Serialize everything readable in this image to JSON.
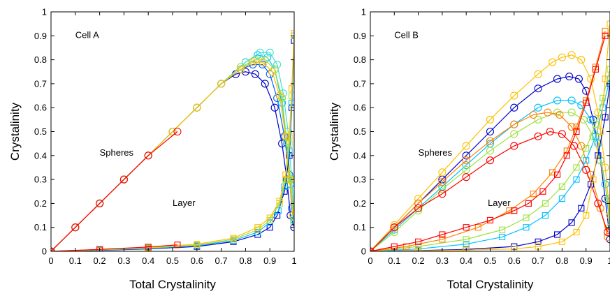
{
  "chart_data": [
    {
      "type": "line",
      "xlabel": "Total Crystalinity",
      "ylabel": "Crystalinity",
      "xlim": [
        0,
        1
      ],
      "ylim": [
        0,
        1
      ],
      "xticks": [
        "0",
        "0.1",
        "0.2",
        "0.3",
        "0.4",
        "0.5",
        "0.6",
        "0.7",
        "0.8",
        "0.9",
        "1"
      ],
      "yticks": [
        "0",
        "0.1",
        "0.2",
        "0.3",
        "0.4",
        "0.5",
        "0.6",
        "0.7",
        "0.8",
        "0.9",
        "1"
      ],
      "annotations": [
        {
          "text": "Cell A",
          "x": 0.1,
          "y": 0.89
        },
        {
          "text": "Spheres",
          "x": 0.2,
          "y": 0.4
        },
        {
          "text": "Layer",
          "x": 0.5,
          "y": 0.19
        }
      ],
      "series": [
        {
          "group": "spheres",
          "marker": "circle",
          "color": "#0000c8",
          "x": [
            0,
            0.1,
            0.2,
            0.3,
            0.4,
            0.5,
            0.6,
            0.7,
            0.76,
            0.8,
            0.84,
            0.88,
            0.92,
            0.95,
            0.97,
            0.985,
            1.0
          ],
          "y": [
            0,
            0.1,
            0.2,
            0.3,
            0.4,
            0.5,
            0.6,
            0.7,
            0.74,
            0.75,
            0.74,
            0.7,
            0.6,
            0.45,
            0.3,
            0.15,
            0.1
          ]
        },
        {
          "group": "spheres",
          "marker": "circle",
          "color": "#0060ff",
          "x": [
            0,
            0.1,
            0.2,
            0.3,
            0.4,
            0.5,
            0.6,
            0.7,
            0.78,
            0.83,
            0.87,
            0.9,
            0.93,
            0.96,
            0.98,
            0.99,
            1.0
          ],
          "y": [
            0,
            0.1,
            0.2,
            0.3,
            0.4,
            0.5,
            0.6,
            0.7,
            0.76,
            0.78,
            0.78,
            0.74,
            0.64,
            0.48,
            0.32,
            0.18,
            0.12
          ]
        },
        {
          "group": "spheres",
          "marker": "circle",
          "color": "#00c0ff",
          "x": [
            0,
            0.1,
            0.2,
            0.3,
            0.4,
            0.5,
            0.6,
            0.7,
            0.8,
            0.85,
            0.89,
            0.92,
            0.95,
            0.97,
            0.985,
            1.0
          ],
          "y": [
            0,
            0.1,
            0.2,
            0.3,
            0.4,
            0.5,
            0.6,
            0.7,
            0.79,
            0.82,
            0.81,
            0.76,
            0.62,
            0.45,
            0.28,
            0.13
          ]
        },
        {
          "group": "spheres",
          "marker": "circle",
          "color": "#40e0d0",
          "x": [
            0,
            0.1,
            0.2,
            0.3,
            0.4,
            0.5,
            0.6,
            0.7,
            0.8,
            0.86,
            0.9,
            0.93,
            0.955,
            0.975,
            0.99,
            1.0
          ],
          "y": [
            0,
            0.1,
            0.2,
            0.3,
            0.4,
            0.5,
            0.6,
            0.7,
            0.79,
            0.83,
            0.83,
            0.78,
            0.66,
            0.5,
            0.3,
            0.14
          ]
        },
        {
          "group": "spheres",
          "marker": "circle",
          "color": "#a0e040",
          "x": [
            0,
            0.1,
            0.2,
            0.3,
            0.4,
            0.5,
            0.6,
            0.7,
            0.78,
            0.84,
            0.88,
            0.92,
            0.95,
            0.97,
            0.985,
            1.0
          ],
          "y": [
            0,
            0.1,
            0.2,
            0.3,
            0.4,
            0.5,
            0.6,
            0.7,
            0.77,
            0.8,
            0.8,
            0.76,
            0.64,
            0.46,
            0.3,
            0.12
          ]
        },
        {
          "group": "spheres",
          "marker": "circle",
          "color": "#ffc000",
          "x": [
            0,
            0.1,
            0.2,
            0.3,
            0.4,
            0.5,
            0.6,
            0.7,
            0.78,
            0.83,
            0.87,
            0.91,
            0.94,
            0.965,
            0.98,
            0.995
          ],
          "y": [
            0,
            0.1,
            0.2,
            0.3,
            0.4,
            0.5,
            0.6,
            0.7,
            0.76,
            0.79,
            0.79,
            0.75,
            0.65,
            0.48,
            0.3,
            0.15
          ]
        },
        {
          "group": "spheres",
          "marker": "circle",
          "color": "#ff0000",
          "x": [
            0,
            0.1,
            0.2,
            0.3,
            0.4,
            0.52
          ],
          "y": [
            0,
            0.1,
            0.2,
            0.3,
            0.4,
            0.5
          ]
        },
        {
          "group": "layer",
          "marker": "square",
          "color": "#0000c8",
          "x": [
            0,
            0.2,
            0.4,
            0.6,
            0.75,
            0.85,
            0.9,
            0.93,
            0.96,
            0.98,
            0.99,
            1.0
          ],
          "y": [
            0,
            0.004,
            0.01,
            0.02,
            0.04,
            0.07,
            0.1,
            0.15,
            0.25,
            0.4,
            0.6,
            0.88
          ]
        },
        {
          "group": "layer",
          "marker": "square",
          "color": "#00c0ff",
          "x": [
            0,
            0.2,
            0.4,
            0.6,
            0.75,
            0.85,
            0.9,
            0.935,
            0.96,
            0.98,
            0.99,
            1.0
          ],
          "y": [
            0,
            0.005,
            0.012,
            0.024,
            0.045,
            0.08,
            0.12,
            0.17,
            0.27,
            0.42,
            0.62,
            0.9
          ]
        },
        {
          "group": "layer",
          "marker": "square",
          "color": "#a0e040",
          "x": [
            0,
            0.2,
            0.4,
            0.6,
            0.75,
            0.85,
            0.9,
            0.94,
            0.965,
            0.98,
            0.99,
            1.0
          ],
          "y": [
            0,
            0.006,
            0.014,
            0.026,
            0.05,
            0.09,
            0.13,
            0.2,
            0.3,
            0.45,
            0.65,
            0.9
          ]
        },
        {
          "group": "layer",
          "marker": "square",
          "color": "#ffc000",
          "x": [
            0,
            0.2,
            0.4,
            0.6,
            0.75,
            0.85,
            0.9,
            0.94,
            0.965,
            0.98,
            0.99,
            1.0
          ],
          "y": [
            0,
            0.008,
            0.016,
            0.03,
            0.055,
            0.1,
            0.14,
            0.21,
            0.32,
            0.48,
            0.68,
            0.91
          ]
        },
        {
          "group": "layer",
          "marker": "square",
          "color": "#ff0000",
          "x": [
            0,
            0.2,
            0.4,
            0.52
          ],
          "y": [
            0,
            0.008,
            0.018,
            0.027
          ]
        }
      ]
    },
    {
      "type": "line",
      "xlabel": "Total Crystalinity",
      "ylabel": "Crystalinity",
      "xlim": [
        0,
        1
      ],
      "ylim": [
        0,
        1
      ],
      "xticks": [
        "0",
        "0.1",
        "0.2",
        "0.3",
        "0.4",
        "0.5",
        "0.6",
        "0.7",
        "0.8",
        "0.9",
        "1"
      ],
      "yticks": [
        "0",
        "0.1",
        "0.2",
        "0.3",
        "0.4",
        "0.5",
        "0.6",
        "0.7",
        "0.8",
        "0.9",
        "1"
      ],
      "annotations": [
        {
          "text": "Cell B",
          "x": 0.1,
          "y": 0.89
        },
        {
          "text": "Spheres",
          "x": 0.2,
          "y": 0.4
        },
        {
          "text": "Layer",
          "x": 0.49,
          "y": 0.19
        }
      ],
      "series": [
        {
          "group": "spheres",
          "marker": "circle",
          "color": "#0000c8",
          "x": [
            0,
            0.1,
            0.2,
            0.3,
            0.4,
            0.5,
            0.6,
            0.7,
            0.78,
            0.83,
            0.87,
            0.9,
            0.93,
            0.96,
            0.98,
            1.0
          ],
          "y": [
            0,
            0.1,
            0.2,
            0.3,
            0.4,
            0.5,
            0.6,
            0.68,
            0.72,
            0.73,
            0.72,
            0.67,
            0.55,
            0.38,
            0.22,
            0.05
          ]
        },
        {
          "group": "spheres",
          "marker": "circle",
          "color": "#00c0ff",
          "x": [
            0,
            0.1,
            0.2,
            0.3,
            0.4,
            0.5,
            0.6,
            0.7,
            0.78,
            0.84,
            0.88,
            0.92,
            0.95,
            0.98,
            1.0
          ],
          "y": [
            0,
            0.09,
            0.18,
            0.27,
            0.36,
            0.45,
            0.53,
            0.6,
            0.63,
            0.63,
            0.61,
            0.55,
            0.45,
            0.28,
            0.1
          ]
        },
        {
          "group": "spheres",
          "marker": "circle",
          "color": "#a0e040",
          "x": [
            0,
            0.1,
            0.2,
            0.3,
            0.4,
            0.5,
            0.6,
            0.7,
            0.78,
            0.84,
            0.89,
            0.93,
            0.96,
            0.99,
            1.0
          ],
          "y": [
            0,
            0.08,
            0.17,
            0.26,
            0.34,
            0.42,
            0.49,
            0.55,
            0.58,
            0.58,
            0.55,
            0.48,
            0.38,
            0.22,
            0.1
          ]
        },
        {
          "group": "spheres",
          "marker": "circle",
          "color": "#ffc000",
          "x": [
            0,
            0.1,
            0.2,
            0.3,
            0.4,
            0.5,
            0.6,
            0.7,
            0.76,
            0.8,
            0.84,
            0.88,
            0.92,
            0.95,
            0.98,
            1.0
          ],
          "y": [
            0,
            0.11,
            0.22,
            0.33,
            0.44,
            0.55,
            0.65,
            0.74,
            0.79,
            0.81,
            0.82,
            0.8,
            0.72,
            0.58,
            0.35,
            0.15
          ]
        },
        {
          "group": "spheres",
          "marker": "circle",
          "color": "#ff8000",
          "x": [
            0,
            0.1,
            0.2,
            0.3,
            0.4,
            0.5,
            0.6,
            0.68,
            0.74,
            0.79,
            0.84,
            0.88,
            0.92,
            0.96,
            0.99
          ],
          "y": [
            0,
            0.1,
            0.2,
            0.29,
            0.38,
            0.46,
            0.53,
            0.57,
            0.58,
            0.57,
            0.52,
            0.44,
            0.32,
            0.18,
            0.06
          ]
        },
        {
          "group": "spheres",
          "marker": "circle",
          "color": "#ff0000",
          "x": [
            0,
            0.1,
            0.2,
            0.3,
            0.4,
            0.5,
            0.6,
            0.7,
            0.75,
            0.8,
            0.85,
            0.9,
            0.95,
            0.99
          ],
          "y": [
            0,
            0.1,
            0.18,
            0.24,
            0.31,
            0.38,
            0.44,
            0.48,
            0.5,
            0.49,
            0.44,
            0.34,
            0.2,
            0.08
          ]
        },
        {
          "group": "layer",
          "marker": "square",
          "color": "#0000c8",
          "x": [
            0,
            0.2,
            0.4,
            0.6,
            0.7,
            0.78,
            0.84,
            0.88,
            0.92,
            0.95,
            0.98,
            1.0
          ],
          "y": [
            0,
            0.003,
            0.008,
            0.02,
            0.04,
            0.07,
            0.12,
            0.18,
            0.28,
            0.4,
            0.56,
            0.7
          ]
        },
        {
          "group": "layer",
          "marker": "square",
          "color": "#00c0ff",
          "x": [
            0,
            0.2,
            0.4,
            0.55,
            0.65,
            0.73,
            0.8,
            0.86,
            0.9,
            0.94,
            0.97,
            1.0
          ],
          "y": [
            0,
            0.01,
            0.03,
            0.06,
            0.1,
            0.15,
            0.22,
            0.3,
            0.38,
            0.48,
            0.6,
            0.72
          ]
        },
        {
          "group": "layer",
          "marker": "square",
          "color": "#a0e040",
          "x": [
            0,
            0.2,
            0.4,
            0.55,
            0.65,
            0.73,
            0.8,
            0.86,
            0.9,
            0.94,
            0.97,
            1.0
          ],
          "y": [
            0,
            0.02,
            0.05,
            0.09,
            0.14,
            0.2,
            0.27,
            0.35,
            0.43,
            0.53,
            0.64,
            0.76
          ]
        },
        {
          "group": "layer",
          "marker": "square",
          "color": "#ffc000",
          "x": [
            0,
            0.2,
            0.4,
            0.6,
            0.7,
            0.8,
            0.86,
            0.9,
            0.93,
            0.96,
            0.98,
            1.0
          ],
          "y": [
            0,
            0.002,
            0.005,
            0.01,
            0.02,
            0.04,
            0.08,
            0.15,
            0.3,
            0.5,
            0.72,
            0.95
          ]
        },
        {
          "group": "layer",
          "marker": "square",
          "color": "#ff8000",
          "x": [
            0,
            0.15,
            0.3,
            0.45,
            0.58,
            0.68,
            0.76,
            0.82,
            0.86,
            0.9,
            0.94,
            0.98
          ],
          "y": [
            0,
            0.02,
            0.05,
            0.1,
            0.17,
            0.24,
            0.33,
            0.42,
            0.52,
            0.63,
            0.77,
            0.92
          ]
        },
        {
          "group": "layer",
          "marker": "square",
          "color": "#ff0000",
          "x": [
            0,
            0.1,
            0.2,
            0.3,
            0.4,
            0.5,
            0.6,
            0.66,
            0.72,
            0.78,
            0.82,
            0.86,
            0.9,
            0.94,
            0.98
          ],
          "y": [
            0,
            0.02,
            0.04,
            0.07,
            0.1,
            0.13,
            0.17,
            0.2,
            0.25,
            0.32,
            0.4,
            0.5,
            0.62,
            0.76,
            0.9
          ]
        }
      ]
    }
  ]
}
